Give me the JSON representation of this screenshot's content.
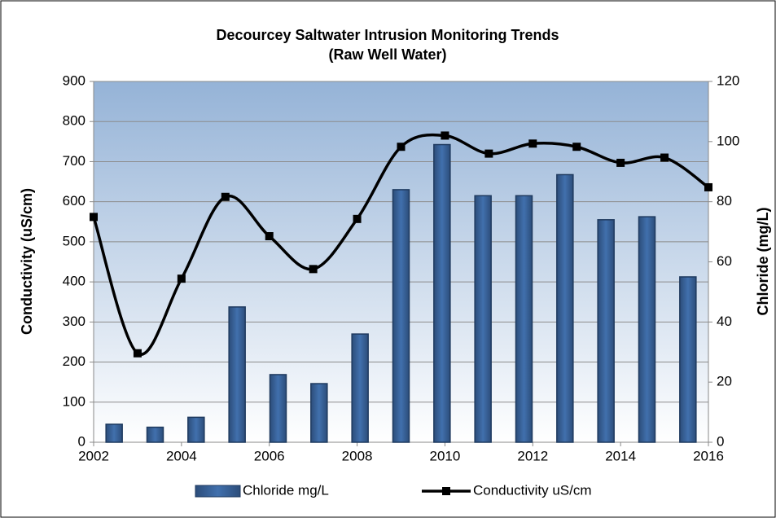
{
  "chart_data": {
    "type": "bar_line",
    "title": "Decourcey Saltwater Intrusion Monitoring Trends",
    "subtitle": "(Raw Well Water)",
    "y_label": "Conductivity (uS/cm)",
    "y2_label": "Chloride (mg/L)",
    "x": [
      2002,
      2003,
      2004,
      2005,
      2006,
      2007,
      2008,
      2009,
      2010,
      2011,
      2012,
      2013,
      2014,
      2015,
      2016
    ],
    "xlim": [
      2002,
      2016
    ],
    "xticks": [
      2002,
      2004,
      2006,
      2008,
      2010,
      2012,
      2014,
      2016
    ],
    "ylim": [
      0,
      900
    ],
    "yticks": [
      0,
      100,
      200,
      300,
      400,
      500,
      600,
      700,
      800,
      900
    ],
    "y2lim": [
      0,
      120
    ],
    "y2ticks": [
      0,
      20,
      40,
      60,
      80,
      100,
      120
    ],
    "grid": true,
    "legend": "bottom",
    "series": [
      {
        "name": "Chloride mg/L",
        "type": "bar",
        "axis": "y2",
        "color": "#365f91",
        "values": [
          6,
          5,
          8.3,
          45,
          22.5,
          19.5,
          36,
          84,
          99,
          82,
          82,
          89,
          74,
          75,
          55
        ]
      },
      {
        "name": "Conductivity uS/cm",
        "type": "line",
        "axis": "y",
        "color": "#000000",
        "values": [
          562,
          222,
          408,
          612,
          514,
          432,
          557,
          737,
          765,
          720,
          745,
          737,
          697,
          710,
          636
        ]
      }
    ]
  }
}
